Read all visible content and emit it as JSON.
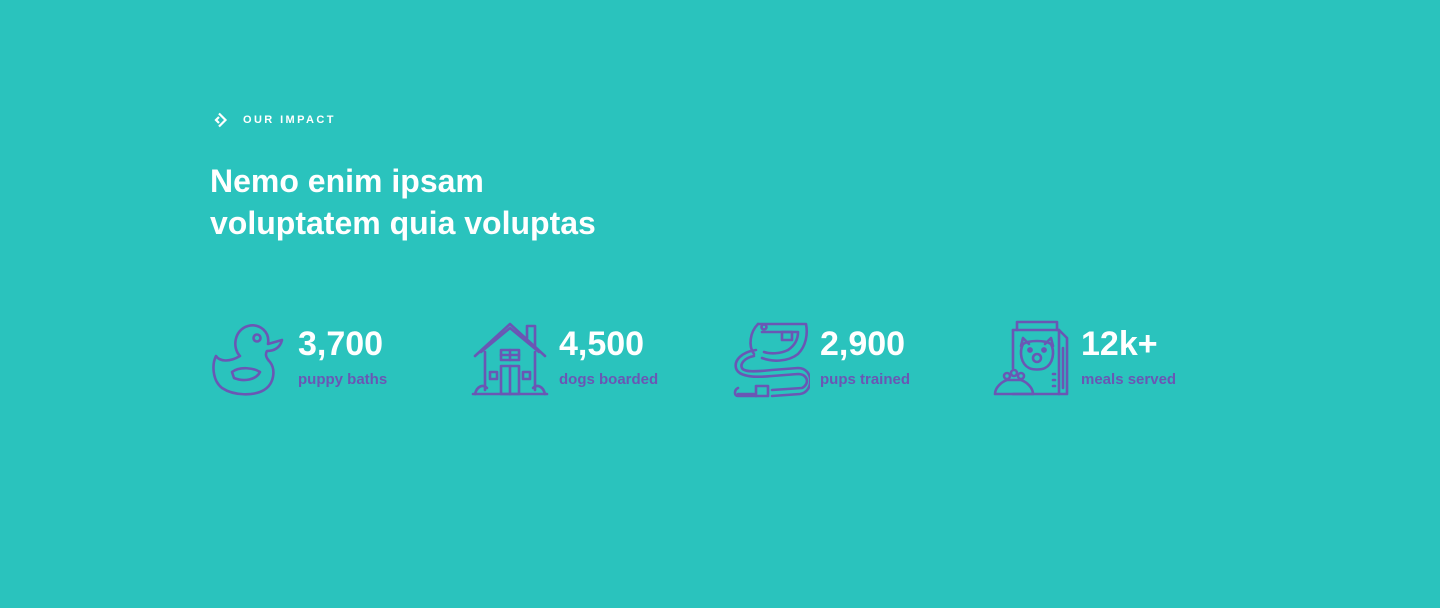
{
  "section": {
    "eyebrow": "OUR IMPACT",
    "heading_line1": "Nemo enim ipsam",
    "heading_line2": "voluptatem quia voluptas"
  },
  "stats": [
    {
      "value": "3,700",
      "caption": "puppy baths",
      "icon": "rubber-duck-icon"
    },
    {
      "value": "4,500",
      "caption": "dogs boarded",
      "icon": "dog-house-icon"
    },
    {
      "value": "2,900",
      "caption": "pups trained",
      "icon": "collar-leash-icon"
    },
    {
      "value": "12k+",
      "caption": "meals served",
      "icon": "dog-food-icon"
    }
  ],
  "colors": {
    "background": "#2ac3bd",
    "accent": "#6a57b4",
    "text": "#ffffff"
  }
}
